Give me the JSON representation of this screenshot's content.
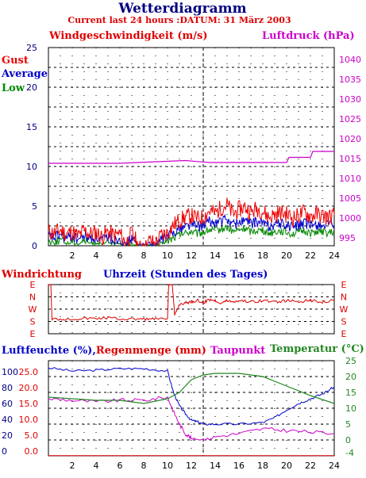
{
  "header": {
    "title": "Wetterdiagramm",
    "subtitle": "Current last 24 hours :DATUM: 31 März 2003"
  },
  "colors": {
    "gust": "#ee0000",
    "average": "#0000cc",
    "low": "#008800",
    "pressure": "#cc00cc",
    "humidity": "#0000cc",
    "rain": "#dd0000",
    "dewpoint": "#cc00cc",
    "temperature": "#228822",
    "direction": "#dd0000",
    "grid": "#000000"
  },
  "chart_data": [
    {
      "type": "line",
      "id": "wind",
      "title": "",
      "ylabel": "Windgeschwindigkeit (m/s)",
      "y2label": "Luftdruck (hPa)",
      "xlim": [
        0,
        24
      ],
      "ylim": [
        0,
        25
      ],
      "y2lim": [
        993,
        1043
      ],
      "x_ticks": [
        2,
        4,
        6,
        8,
        10,
        12,
        14,
        16,
        18,
        20,
        22,
        24
      ],
      "y_ticks": [
        0,
        5,
        10,
        15,
        20,
        25
      ],
      "y2_ticks": [
        995,
        1000,
        1005,
        1010,
        1015,
        1020,
        1025,
        1030,
        1035,
        1040
      ],
      "grid": true,
      "legend_placement": "top-left",
      "legend": [
        "Gust",
        "Average",
        "Low"
      ],
      "series": [
        {
          "name": "Gust",
          "x": [
            0,
            0.5,
            1,
            1.5,
            2,
            2.5,
            3,
            3.5,
            4,
            4.5,
            5,
            5.5,
            6,
            6.5,
            7,
            7.5,
            8,
            8.5,
            9,
            9.5,
            10,
            10.5,
            11,
            11.5,
            12,
            12.5,
            13,
            13.5,
            14,
            14.5,
            15,
            15.5,
            16,
            16.5,
            17,
            17.5,
            18,
            18.5,
            19,
            19.5,
            20,
            20.5,
            21,
            21.5,
            22,
            22.5,
            23,
            23.5,
            24
          ],
          "values": [
            1.8,
            1.6,
            2.0,
            1.5,
            1.8,
            1.2,
            1.9,
            1.5,
            1.7,
            1.1,
            1.8,
            1.3,
            1.5,
            0.3,
            1.6,
            0.2,
            0.2,
            0.6,
            0.3,
            1.4,
            1.6,
            2.6,
            3.2,
            3.6,
            3.8,
            3.4,
            3.6,
            4.4,
            4.1,
            4.8,
            5.2,
            4.0,
            4.6,
            4.9,
            4.2,
            4.7,
            4.4,
            3.6,
            3.9,
            4.2,
            4.0,
            3.5,
            3.8,
            4.3,
            3.7,
            4.0,
            3.8,
            3.6,
            3.9
          ]
        },
        {
          "name": "Average",
          "x": [
            0,
            0.5,
            1,
            1.5,
            2,
            2.5,
            3,
            3.5,
            4,
            4.5,
            5,
            5.5,
            6,
            6.5,
            7,
            7.5,
            8,
            8.5,
            9,
            9.5,
            10,
            10.5,
            11,
            11.5,
            12,
            12.5,
            13,
            13.5,
            14,
            14.5,
            15,
            15.5,
            16,
            16.5,
            17,
            17.5,
            18,
            18.5,
            19,
            19.5,
            20,
            20.5,
            21,
            21.5,
            22,
            22.5,
            23,
            23.5,
            24
          ],
          "values": [
            1.2,
            1.0,
            1.4,
            0.9,
            1.2,
            0.8,
            1.3,
            0.9,
            1.1,
            0.6,
            1.2,
            0.7,
            1.0,
            0.1,
            1.0,
            0.1,
            0.1,
            0.3,
            0.1,
            0.9,
            1.1,
            1.8,
            2.2,
            2.5,
            2.8,
            2.4,
            2.6,
            3.0,
            2.9,
            3.1,
            3.3,
            2.7,
            3.0,
            3.2,
            2.8,
            3.0,
            2.9,
            2.5,
            2.7,
            2.8,
            2.6,
            2.4,
            2.6,
            2.8,
            2.5,
            2.7,
            2.6,
            2.5,
            2.6
          ]
        },
        {
          "name": "Low",
          "x": [
            0,
            0.5,
            1,
            1.5,
            2,
            2.5,
            3,
            3.5,
            4,
            4.5,
            5,
            5.5,
            6,
            6.5,
            7,
            7.5,
            8,
            8.5,
            9,
            9.5,
            10,
            10.5,
            11,
            11.5,
            12,
            12.5,
            13,
            13.5,
            14,
            14.5,
            15,
            15.5,
            16,
            16.5,
            17,
            17.5,
            18,
            18.5,
            19,
            19.5,
            20,
            20.5,
            21,
            21.5,
            22,
            22.5,
            23,
            23.5,
            24
          ],
          "values": [
            0.6,
            0.4,
            0.8,
            0.3,
            0.6,
            0.2,
            0.7,
            0.3,
            0.5,
            0.1,
            0.5,
            0.2,
            0.4,
            0.0,
            0.3,
            0.0,
            0.0,
            0.0,
            0.0,
            0.3,
            0.5,
            1.0,
            1.4,
            1.6,
            1.8,
            1.5,
            1.7,
            2.0,
            1.9,
            2.1,
            2.3,
            1.8,
            2.0,
            2.2,
            1.8,
            2.0,
            1.9,
            1.6,
            1.8,
            1.9,
            1.7,
            1.5,
            1.7,
            1.9,
            1.6,
            1.8,
            1.7,
            1.6,
            1.7
          ]
        },
        {
          "name": "Luftdruck",
          "axis": "y2",
          "x": [
            0,
            6,
            11.5,
            13.5,
            17,
            20,
            20.2,
            22,
            22.2,
            24
          ],
          "values": [
            1013.8,
            1013.8,
            1014.5,
            1014.0,
            1014.0,
            1014.0,
            1015.3,
            1015.3,
            1016.8,
            1016.8
          ]
        }
      ]
    },
    {
      "type": "line",
      "id": "direction",
      "title": "",
      "ylabel": "Windrichtung",
      "xlabel": "Uhrzeit (Stunden des Tages)",
      "xlim": [
        0,
        24
      ],
      "y_labels": [
        "E",
        "N",
        "W",
        "S",
        "E"
      ],
      "grid": true,
      "series": [
        {
          "name": "",
          "x": [
            0,
            0.2,
            0.3,
            1,
            2,
            3,
            4,
            5,
            6,
            7,
            8,
            9,
            10,
            10.1,
            10.2,
            10.4,
            10.6,
            11,
            11.5,
            12,
            12.5,
            13,
            13.5,
            14,
            14.5,
            15,
            15.5,
            16,
            17,
            18,
            19,
            20,
            21,
            22,
            23,
            24
          ],
          "values": [
            0,
            0,
            2.8,
            2.8,
            2.8,
            2.75,
            2.75,
            2.7,
            2.8,
            2.8,
            2.8,
            2.8,
            2.8,
            0,
            0,
            0,
            2.5,
            1.6,
            1.5,
            1.4,
            1.3,
            1.5,
            1.2,
            1.3,
            1.5,
            1.3,
            1.4,
            1.3,
            1.4,
            1.3,
            1.4,
            1.3,
            1.4,
            1.3,
            1.4,
            1.3
          ]
        }
      ]
    },
    {
      "type": "line",
      "id": "humidity",
      "title": "",
      "xlim": [
        0,
        24
      ],
      "y_ticks_humidity": [
        0,
        20,
        40,
        60,
        80,
        100
      ],
      "y_ticks_rain": [
        "0.0",
        "5.0",
        "10.0",
        "15.0",
        "20.0",
        "25.0"
      ],
      "y2_ticks_temp": [
        -4,
        0,
        5,
        10,
        15,
        20,
        25
      ],
      "ylim_humidity": [
        0,
        120
      ],
      "y2lim_temp": [
        -5,
        25
      ],
      "x_ticks": [
        2,
        4,
        6,
        8,
        10,
        12,
        14,
        16,
        18,
        20,
        22,
        24
      ],
      "grid": true,
      "legend": [
        "Luftfeuchte (%)",
        "Regenmenge (mm)",
        "Taupunkt",
        "Temperatur (°C)"
      ],
      "series": [
        {
          "name": "Luftfeuchte (%)",
          "axis": "humidity",
          "x": [
            0,
            2,
            4,
            6,
            8,
            10,
            10.5,
            11,
            11.5,
            12,
            12.5,
            13,
            14,
            16,
            18,
            19,
            20,
            21,
            22,
            23,
            24
          ],
          "values": [
            111,
            107,
            108,
            110,
            110,
            107,
            80,
            63,
            53,
            45,
            43,
            40,
            40,
            40,
            42,
            48,
            58,
            66,
            72,
            78,
            87
          ]
        },
        {
          "name": "Regenmenge (mm)",
          "axis": "humidity",
          "x": [
            0,
            24
          ],
          "values": [
            0.3,
            0.3
          ]
        },
        {
          "name": "Taupunkt",
          "axis": "temp",
          "x": [
            0,
            2,
            4,
            6,
            8,
            10,
            10.5,
            11,
            11.5,
            12,
            13,
            14,
            16,
            18,
            20,
            22,
            24
          ],
          "values": [
            13,
            12.5,
            12,
            12.5,
            12.5,
            13.5,
            9,
            5,
            2,
            0.5,
            0,
            1,
            2,
            3.5,
            3,
            2.5,
            2
          ]
        },
        {
          "name": "Temperatur (°C)",
          "axis": "temp",
          "x": [
            0,
            2,
            4,
            6,
            8,
            10,
            11,
            12,
            13,
            14,
            16,
            18,
            20,
            22,
            24
          ],
          "values": [
            13.5,
            13,
            12.5,
            12.5,
            11.5,
            13,
            15,
            19,
            20.5,
            21,
            21,
            20,
            17,
            14,
            11.5
          ]
        }
      ]
    }
  ],
  "labels": {
    "wind_y": "Windgeschwindigkeit (m/s)",
    "pressure_y": "Luftdruck (hPa)",
    "gust": "Gust",
    "average": "Average",
    "low": "Low",
    "direction_y": "Windrichtung",
    "time_x": "Uhrzeit (Stunden des Tages)",
    "humidity": "Luftfeuchte (%),",
    "rain": "Regenmenge (mm)",
    "dewpoint": "Taupunkt",
    "temperature": "Temperatur (",
    "degC": "°C)"
  }
}
